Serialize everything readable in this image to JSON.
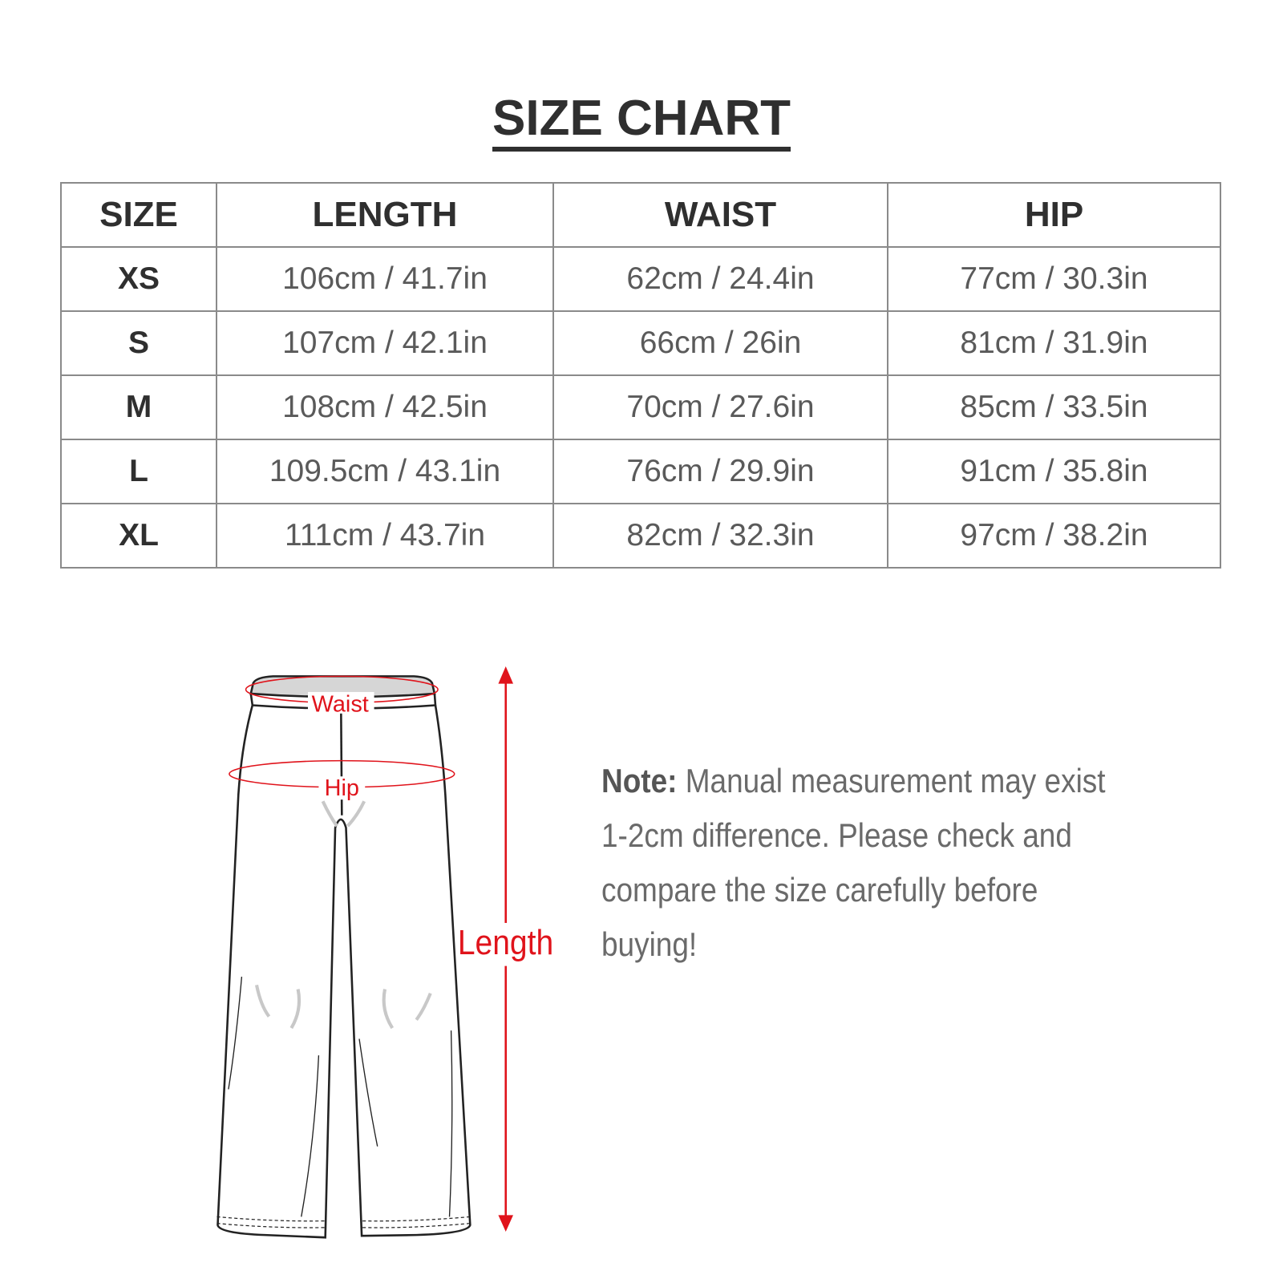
{
  "title": "SIZE CHART",
  "table": {
    "headers": [
      "SIZE",
      "LENGTH",
      "WAIST",
      "HIP"
    ],
    "rows": [
      [
        "XS",
        "106cm / 41.7in",
        "62cm / 24.4in",
        "77cm / 30.3in"
      ],
      [
        "S",
        "107cm / 42.1in",
        "66cm / 26in",
        "81cm / 31.9in"
      ],
      [
        "M",
        "108cm / 42.5in",
        "70cm / 27.6in",
        "85cm / 33.5in"
      ],
      [
        "L",
        "109.5cm / 43.1in",
        "76cm / 29.9in",
        "91cm / 35.8in"
      ],
      [
        "XL",
        "111cm / 43.7in",
        "82cm / 32.3in",
        "97cm / 38.2in"
      ]
    ]
  },
  "diagram": {
    "waist_label": "Waist",
    "hip_label": "Hip",
    "length_label": "Length",
    "accent_color": "#e0131b"
  },
  "note": {
    "label": "Note:",
    "text": "Manual measurement may exist 1-2cm difference. Please check and compare the size carefully before buying!"
  }
}
